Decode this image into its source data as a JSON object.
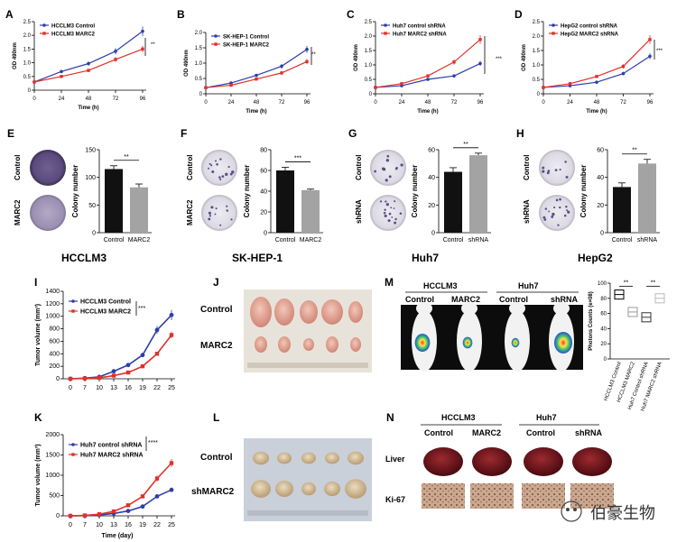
{
  "colors": {
    "blue": "#2e3ea8",
    "red": "#e0312b",
    "black": "#111111",
    "grey": "#a3a3a3"
  },
  "panels": {
    "A": {
      "letter": "A",
      "sig": "**"
    },
    "B": {
      "letter": "B",
      "sig": "**"
    },
    "C": {
      "letter": "C",
      "sig": "***"
    },
    "D": {
      "letter": "D",
      "sig": "***"
    },
    "E": {
      "letter": "E",
      "sig": "**",
      "row1": "Control",
      "row2": "MARC2",
      "title": "HCCLM3"
    },
    "F": {
      "letter": "F",
      "sig": "***",
      "row1": "Control",
      "row2": "MARC2",
      "title": "SK-HEP-1"
    },
    "G": {
      "letter": "G",
      "sig": "**",
      "row1": "Control",
      "row2": "shRNA",
      "title": "Huh7"
    },
    "H": {
      "letter": "H",
      "sig": "**",
      "row1": "Control",
      "row2": "shRNA",
      "title": "HepG2"
    },
    "I": {
      "letter": "I",
      "sig": "***"
    },
    "J": {
      "letter": "J",
      "row1": "Control",
      "row2": "MARC2"
    },
    "K": {
      "letter": "K",
      "sig": "****"
    },
    "L": {
      "letter": "L",
      "row1": "Control",
      "row2": "shMARC2"
    },
    "M": {
      "letter": "M",
      "group1": "HCCLM3",
      "group2": "Huh7",
      "c1": "Control",
      "c2": "MARC2",
      "c3": "Control",
      "c4": "shRNA"
    },
    "N": {
      "letter": "N",
      "group1": "HCCLM3",
      "group2": "Huh7",
      "c1": "Control",
      "c2": "MARC2",
      "c3": "Control",
      "c4": "shRNA",
      "row1": "Liver",
      "row2": "Ki-67"
    }
  },
  "watermark": {
    "text": "伯豪生物"
  },
  "chart_data": [
    {
      "id": "A",
      "type": "line",
      "xlabel": "Time (h)",
      "ylabel": "OD 490nm",
      "x": [
        0,
        24,
        48,
        72,
        96
      ],
      "xlim": [
        0,
        96
      ],
      "ylim": [
        0,
        2.5
      ],
      "yticks": [
        0,
        0.5,
        1.0,
        1.5,
        2.0,
        2.5
      ],
      "legend": "top-left",
      "series": [
        {
          "name": "HCCLM3 Control",
          "color": "blue",
          "values": [
            0.3,
            0.68,
            0.97,
            1.42,
            2.15
          ]
        },
        {
          "name": "HCCLM3 MARC2",
          "color": "red",
          "values": [
            0.3,
            0.5,
            0.72,
            1.12,
            1.5
          ]
        }
      ]
    },
    {
      "id": "B",
      "type": "line",
      "xlabel": "Time (h)",
      "ylabel": "OD 490nm",
      "x": [
        0,
        24,
        48,
        72,
        96
      ],
      "xlim": [
        0,
        96
      ],
      "ylim": [
        0,
        2.0
      ],
      "yticks": [
        0,
        0.5,
        1.0,
        1.5,
        2.0
      ],
      "legend": "top-left",
      "series": [
        {
          "name": "SK-HEP-1 Control",
          "color": "blue",
          "values": [
            0.2,
            0.35,
            0.6,
            0.9,
            1.45
          ]
        },
        {
          "name": "SK-HEP-1 MARC2",
          "color": "red",
          "values": [
            0.2,
            0.28,
            0.48,
            0.68,
            1.05
          ]
        }
      ]
    },
    {
      "id": "C",
      "type": "line",
      "xlabel": "Time (h)",
      "ylabel": "OD 490nm",
      "x": [
        0,
        24,
        48,
        72,
        96
      ],
      "xlim": [
        0,
        96
      ],
      "ylim": [
        0,
        2.5
      ],
      "yticks": [
        0,
        0.5,
        1.0,
        1.5,
        2.0,
        2.5
      ],
      "legend": "top-left",
      "series": [
        {
          "name": "Huh7 control shRNA",
          "color": "blue",
          "values": [
            0.22,
            0.28,
            0.5,
            0.62,
            1.05
          ]
        },
        {
          "name": "Huh7 MARC2 shRNA",
          "color": "red",
          "values": [
            0.22,
            0.35,
            0.62,
            1.1,
            1.88
          ]
        }
      ]
    },
    {
      "id": "D",
      "type": "line",
      "xlabel": "Time (h)",
      "ylabel": "OD 490nm",
      "x": [
        0,
        24,
        48,
        72,
        96
      ],
      "xlim": [
        0,
        96
      ],
      "ylim": [
        0,
        2.5
      ],
      "yticks": [
        0,
        0.5,
        1.0,
        1.5,
        2.0,
        2.5
      ],
      "legend": "top-left",
      "series": [
        {
          "name": "HepG2 control shRNA",
          "color": "blue",
          "values": [
            0.22,
            0.28,
            0.4,
            0.7,
            1.3
          ]
        },
        {
          "name": "HepG2 MARC2 shRNA",
          "color": "red",
          "values": [
            0.22,
            0.35,
            0.6,
            0.95,
            1.88
          ]
        }
      ]
    },
    {
      "id": "E",
      "type": "bar",
      "ylabel": "Colony number",
      "categories": [
        "Control",
        "MARC2"
      ],
      "values": [
        115,
        82
      ],
      "errors": [
        6,
        6
      ],
      "ylim": [
        0,
        150
      ],
      "yticks": [
        0,
        50,
        100,
        150
      ],
      "colors": [
        "black",
        "grey"
      ]
    },
    {
      "id": "F",
      "type": "bar",
      "ylabel": "Colony number",
      "categories": [
        "Control",
        "MARC2"
      ],
      "values": [
        60,
        41
      ],
      "errors": [
        3,
        1
      ],
      "ylim": [
        0,
        80
      ],
      "yticks": [
        0,
        20,
        40,
        60,
        80
      ],
      "colors": [
        "black",
        "grey"
      ]
    },
    {
      "id": "G",
      "type": "bar",
      "ylabel": "Colony number",
      "categories": [
        "Control",
        "shRNA"
      ],
      "values": [
        44,
        56
      ],
      "errors": [
        3,
        1.5
      ],
      "ylim": [
        0,
        60
      ],
      "yticks": [
        0,
        20,
        40,
        60
      ],
      "colors": [
        "black",
        "grey"
      ]
    },
    {
      "id": "H",
      "type": "bar",
      "ylabel": "Colony number",
      "categories": [
        "Control",
        "shRNA"
      ],
      "values": [
        33,
        50
      ],
      "errors": [
        3,
        3
      ],
      "ylim": [
        0,
        60
      ],
      "yticks": [
        0,
        20,
        40,
        60
      ],
      "colors": [
        "black",
        "grey"
      ]
    },
    {
      "id": "I",
      "type": "line",
      "xlabel": "",
      "ylabel": "Tumor volume (mm³)",
      "x": [
        0,
        7,
        10,
        13,
        16,
        19,
        22,
        25
      ],
      "ylim": [
        0,
        1400
      ],
      "yticks": [
        0,
        200,
        400,
        600,
        800,
        1000,
        1200,
        1400
      ],
      "legend": "top-left",
      "series": [
        {
          "name": "HCCLM3 Control",
          "color": "blue",
          "values": [
            0,
            10,
            30,
            120,
            220,
            380,
            780,
            1020
          ]
        },
        {
          "name": "HCCLM3 MARC2",
          "color": "red",
          "values": [
            0,
            5,
            15,
            50,
            100,
            200,
            400,
            700
          ]
        }
      ]
    },
    {
      "id": "K",
      "type": "line",
      "xlabel": "Time (day)",
      "ylabel": "Tumor volume (mm³)",
      "x": [
        0,
        7,
        10,
        13,
        16,
        19,
        22,
        25
      ],
      "ylim": [
        0,
        2000
      ],
      "yticks": [
        0,
        500,
        1000,
        1500,
        2000
      ],
      "legend": "top-left",
      "series": [
        {
          "name": "Huh7 control shRNA",
          "color": "blue",
          "values": [
            0,
            5,
            20,
            60,
            120,
            230,
            480,
            640
          ]
        },
        {
          "name": "Huh7 MARC2 shRNA",
          "color": "red",
          "values": [
            0,
            10,
            40,
            110,
            260,
            480,
            920,
            1300
          ]
        }
      ]
    },
    {
      "id": "M",
      "type": "box",
      "ylabel": "Photons Counts (e×08)",
      "categories": [
        "HCCLM3 Control",
        "HCCLM3 MARC2",
        "Huh7 Control shRNA",
        "Huh7 MARC2 shRNA"
      ],
      "values": [
        85,
        62,
        55,
        80
      ],
      "ylim": [
        0,
        100
      ],
      "yticks": [
        0,
        20,
        40,
        60,
        80,
        100
      ],
      "sig": [
        "**",
        "**"
      ]
    }
  ]
}
